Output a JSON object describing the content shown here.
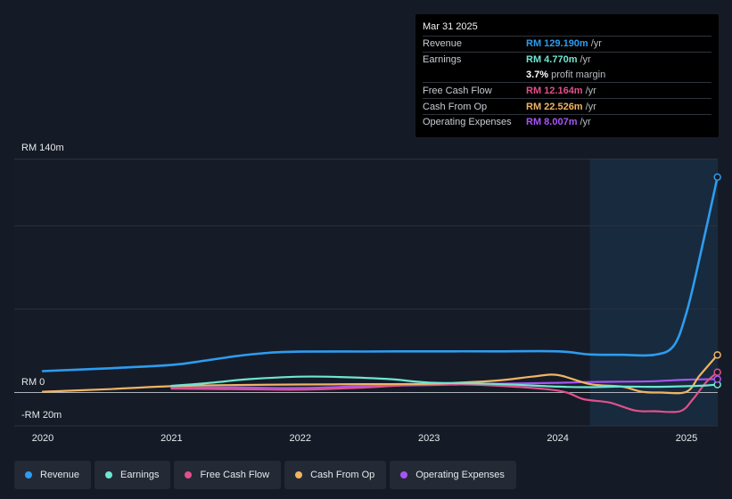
{
  "tooltip": {
    "date": "Mar 31 2025",
    "rows": [
      {
        "label": "Revenue",
        "value": "RM 129.190m",
        "unit": "/yr",
        "color": "#2d9cf0"
      },
      {
        "label": "Earnings",
        "value": "RM 4.770m",
        "unit": "/yr",
        "color": "#6ee6d2"
      },
      {
        "label": "",
        "value": "3.7%",
        "unit": "profit margin",
        "color": "#ffffff"
      },
      {
        "label": "Free Cash Flow",
        "value": "RM 12.164m",
        "unit": "/yr",
        "color": "#e0508c"
      },
      {
        "label": "Cash From Op",
        "value": "RM 22.526m",
        "unit": "/yr",
        "color": "#f0b464"
      },
      {
        "label": "Operating Expenses",
        "value": "RM 8.007m",
        "unit": "/yr",
        "color": "#a855f7"
      }
    ]
  },
  "axis": {
    "y_top_label": "RM 140m",
    "y_zero_label": "RM 0",
    "y_bottom_label": "-RM 20m"
  },
  "legend": [
    {
      "label": "Revenue",
      "color": "#2d9cf0"
    },
    {
      "label": "Earnings",
      "color": "#6ee6d2"
    },
    {
      "label": "Free Cash Flow",
      "color": "#e0508c"
    },
    {
      "label": "Cash From Op",
      "color": "#f0b464"
    },
    {
      "label": "Operating Expenses",
      "color": "#a855f7"
    }
  ],
  "chart_data": {
    "type": "line",
    "title": "",
    "xlabel": "",
    "ylabel": "",
    "x_ticks": [
      "2020",
      "2021",
      "2022",
      "2023",
      "2024",
      "2025"
    ],
    "ylim": [
      -20,
      140
    ],
    "y_ticks": [
      -20,
      0,
      140
    ],
    "x_range": [
      2019.9,
      2025.25
    ],
    "highlight_from": 2024.25,
    "series": [
      {
        "name": "Revenue",
        "color": "#2d9cf0",
        "x": [
          2020.0,
          2020.5,
          2021.0,
          2021.25,
          2021.5,
          2021.75,
          2022.0,
          2022.5,
          2023.0,
          2023.5,
          2024.0,
          2024.25,
          2024.5,
          2024.75,
          2024.9,
          2025.0,
          2025.1,
          2025.24
        ],
        "y": [
          12.8,
          14.5,
          16.5,
          19.0,
          21.8,
          23.8,
          24.5,
          24.6,
          24.7,
          24.7,
          24.7,
          22.8,
          22.6,
          22.6,
          28.0,
          48.0,
          80.0,
          129.19
        ]
      },
      {
        "name": "Earnings",
        "color": "#6ee6d2",
        "x": [
          2021.0,
          2021.3,
          2021.6,
          2022.0,
          2022.3,
          2022.7,
          2023.0,
          2023.5,
          2024.0,
          2024.25,
          2024.5,
          2024.75,
          2025.0,
          2025.15,
          2025.24
        ],
        "y": [
          4.0,
          5.8,
          8.0,
          9.5,
          9.3,
          8.0,
          6.0,
          5.2,
          3.5,
          3.2,
          3.6,
          3.4,
          3.8,
          4.2,
          4.77
        ]
      },
      {
        "name": "Free Cash Flow",
        "color": "#e0508c",
        "x": [
          2021.0,
          2021.5,
          2022.0,
          2022.5,
          2023.0,
          2023.5,
          2024.0,
          2024.2,
          2024.4,
          2024.6,
          2024.75,
          2024.95,
          2025.05,
          2025.15,
          2025.24
        ],
        "y": [
          2.3,
          2.0,
          1.7,
          3.0,
          5.0,
          4.2,
          1.2,
          -4.0,
          -6.0,
          -10.8,
          -11.2,
          -11.2,
          -4.0,
          6.0,
          12.164
        ]
      },
      {
        "name": "Cash From Op",
        "color": "#f0b464",
        "x": [
          2020.0,
          2020.5,
          2021.0,
          2021.5,
          2022.0,
          2022.5,
          2023.0,
          2023.5,
          2023.8,
          2024.0,
          2024.25,
          2024.5,
          2024.65,
          2024.8,
          2025.0,
          2025.1,
          2025.24
        ],
        "y": [
          0.5,
          2.0,
          3.8,
          4.5,
          4.8,
          5.0,
          5.3,
          7.0,
          9.5,
          10.5,
          5.0,
          3.5,
          0.5,
          0.0,
          0.5,
          10.0,
          22.526
        ]
      },
      {
        "name": "Operating Expenses",
        "color": "#a855f7",
        "x": [
          2021.0,
          2021.5,
          2022.0,
          2022.5,
          2023.0,
          2023.5,
          2024.0,
          2024.25,
          2024.5,
          2024.75,
          2025.0,
          2025.24
        ],
        "y": [
          2.8,
          3.0,
          2.7,
          3.8,
          4.5,
          5.2,
          5.8,
          6.3,
          6.5,
          6.8,
          7.7,
          8.007
        ]
      }
    ]
  }
}
